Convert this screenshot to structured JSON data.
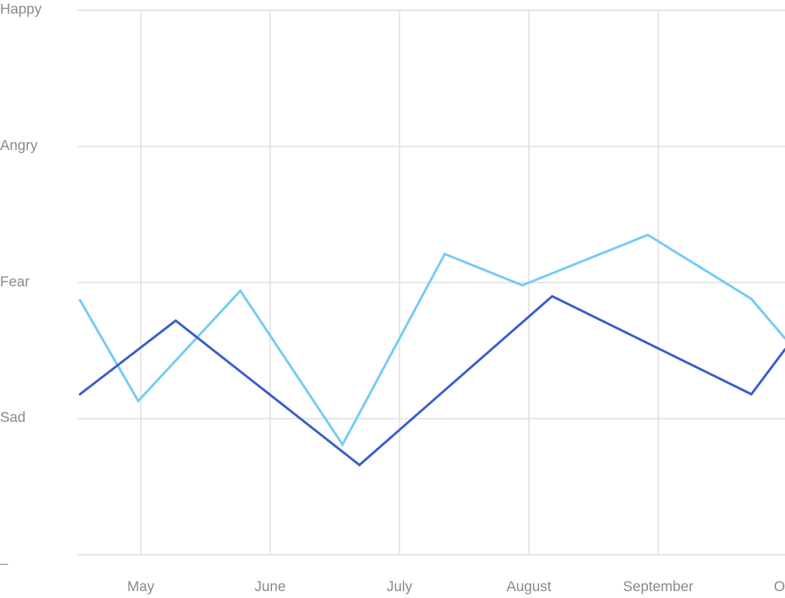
{
  "chart_data": {
    "type": "line",
    "title": "",
    "xlabel": "",
    "ylabel": "",
    "y_categories": [
      "Sad",
      "Fear",
      "Angry",
      "Happy"
    ],
    "y_bottom_label": "–",
    "ylim": [
      0,
      4
    ],
    "x_ticks": [
      "May",
      "June",
      "July",
      "August",
      "September",
      "Oct"
    ],
    "xlim": [
      -0.49,
      4.98
    ],
    "grid": true,
    "legend": "none",
    "series": [
      {
        "color": "#75cbf7",
        "x": [
          -0.47,
          -0.02,
          0.77,
          1.56,
          2.35,
          2.95,
          3.92,
          4.72,
          4.98
        ],
        "y": [
          1.87,
          1.13,
          1.94,
          0.81,
          2.21,
          1.98,
          2.35,
          1.88,
          1.59
        ]
      },
      {
        "color": "#3a5fcd",
        "x": [
          -0.47,
          0.27,
          1.69,
          3.18,
          4.72,
          4.98
        ],
        "y": [
          1.18,
          1.72,
          0.66,
          1.9,
          1.18,
          1.51
        ]
      }
    ]
  }
}
